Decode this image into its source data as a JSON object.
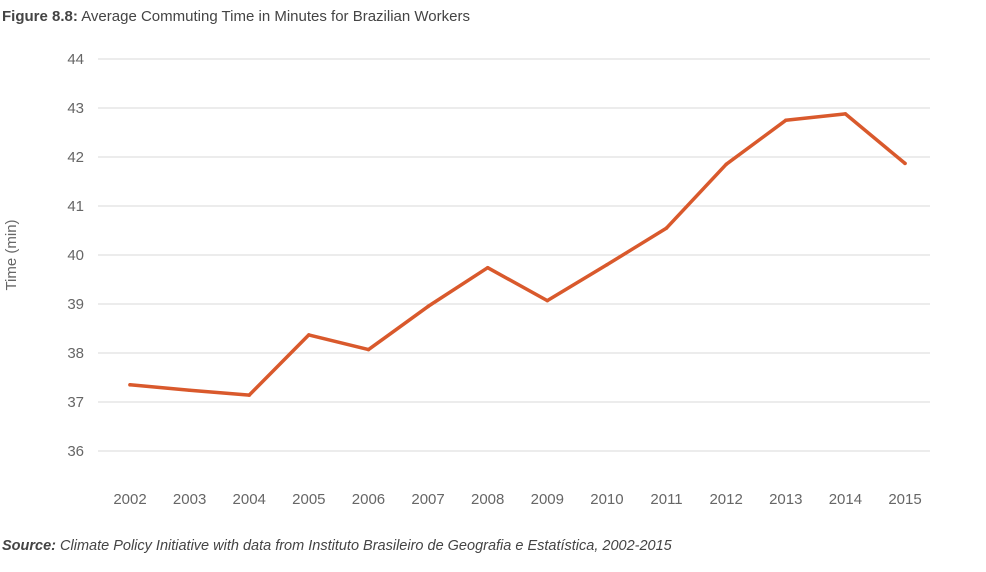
{
  "figure": {
    "label": "Figure 8.8:",
    "title": "Average Commuting Time in Minutes for Brazilian Workers"
  },
  "source": {
    "label": "Source:",
    "text": "Climate Policy Initiative with data from Instituto Brasileiro de Geografia e Estatística, 2002-2015"
  },
  "chart_data": {
    "type": "line",
    "title": "Average Commuting Time in Minutes for Brazilian Workers",
    "xlabel": "",
    "ylabel": "Time (min)",
    "categories": [
      "2002",
      "2003",
      "2004",
      "2005",
      "2006",
      "2007",
      "2008",
      "2009",
      "2010",
      "2011",
      "2012",
      "2013",
      "2014",
      "2015"
    ],
    "series": [
      {
        "values": [
          37.35,
          37.24,
          37.14,
          38.37,
          38.07,
          38.95,
          39.74,
          39.07,
          39.8,
          40.55,
          41.85,
          42.75,
          42.88,
          41.87
        ],
        "color": "#d9592c"
      }
    ],
    "ylim": [
      36,
      44
    ],
    "yticks": [
      36,
      37,
      38,
      39,
      40,
      41,
      42,
      43,
      44
    ],
    "grid": true,
    "legend": "none"
  }
}
